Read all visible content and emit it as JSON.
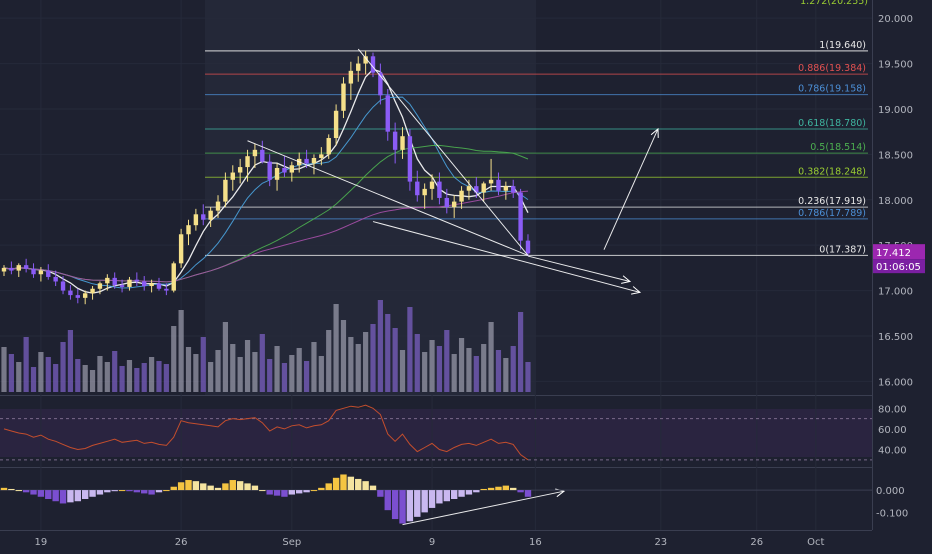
{
  "chart_data": {
    "type": "candlestick",
    "price_axis": {
      "ticks": [
        "20.000",
        "19.500",
        "19.000",
        "18.500",
        "18.000",
        "17.500",
        "17.000",
        "16.500",
        "16.000"
      ],
      "range": [
        15.85,
        20.2
      ],
      "top_partial_label": "1.272(20.255)"
    },
    "x_axis": {
      "tick_labels": [
        "19",
        "26",
        "Sep",
        "9",
        "16",
        "23",
        "26",
        "Oct"
      ]
    },
    "last_price": {
      "value": "17.412",
      "countdown": "01:06:05"
    },
    "fib_levels": [
      {
        "ratio": "1",
        "price": 19.64,
        "label": "1(19.640)",
        "color": "#e8e8e8"
      },
      {
        "ratio": "0.886",
        "price": 19.384,
        "label": "0.886(19.384)",
        "color": "#e25151"
      },
      {
        "ratio": "0.786",
        "price": 19.158,
        "label": "0.786(19.158)",
        "color": "#4c8fd6"
      },
      {
        "ratio": "0.618",
        "price": 18.78,
        "label": "0.618(18.780)",
        "color": "#3fb5a0"
      },
      {
        "ratio": "0.5",
        "price": 18.514,
        "label": "0.5(18.514)",
        "color": "#4caf50"
      },
      {
        "ratio": "0.382",
        "price": 18.248,
        "label": "0.382(18.248)",
        "color": "#9acd32"
      },
      {
        "ratio": "0.236",
        "price": 17.919,
        "label": "0.236(17.919)",
        "color": "#e8e8e8"
      },
      {
        "ratio": "0.786",
        "price": 17.789,
        "label": "0.786(17.789)",
        "color": "#4c8fd6"
      },
      {
        "ratio": "0",
        "price": 17.387,
        "label": "0(17.387)",
        "color": "#e8e8e8"
      }
    ],
    "candles": [
      [
        17.21,
        17.28,
        17.16,
        17.25
      ],
      [
        17.25,
        17.32,
        17.18,
        17.22
      ],
      [
        17.22,
        17.3,
        17.15,
        17.28
      ],
      [
        17.28,
        17.35,
        17.2,
        17.24
      ],
      [
        17.24,
        17.3,
        17.14,
        17.18
      ],
      [
        17.18,
        17.26,
        17.1,
        17.22
      ],
      [
        17.22,
        17.29,
        17.12,
        17.15
      ],
      [
        17.15,
        17.22,
        17.05,
        17.1
      ],
      [
        17.1,
        17.16,
        16.96,
        17.0
      ],
      [
        17.0,
        17.06,
        16.9,
        16.95
      ],
      [
        16.95,
        17.02,
        16.86,
        16.92
      ],
      [
        16.92,
        17.0,
        16.85,
        16.97
      ],
      [
        16.97,
        17.05,
        16.9,
        17.02
      ],
      [
        17.02,
        17.1,
        16.96,
        17.08
      ],
      [
        17.08,
        17.18,
        17.0,
        17.14
      ],
      [
        17.14,
        17.2,
        17.02,
        17.06
      ],
      [
        17.06,
        17.12,
        16.98,
        17.04
      ],
      [
        17.04,
        17.15,
        17.0,
        17.12
      ],
      [
        17.12,
        17.2,
        17.05,
        17.1
      ],
      [
        17.1,
        17.16,
        17.0,
        17.05
      ],
      [
        17.05,
        17.12,
        16.98,
        17.08
      ],
      [
        17.08,
        17.14,
        17.0,
        17.02
      ],
      [
        17.02,
        17.08,
        16.95,
        17.0
      ],
      [
        17.0,
        17.32,
        16.98,
        17.3
      ],
      [
        17.3,
        17.68,
        17.25,
        17.62
      ],
      [
        17.62,
        17.78,
        17.5,
        17.72
      ],
      [
        17.72,
        17.9,
        17.66,
        17.84
      ],
      [
        17.84,
        17.95,
        17.72,
        17.78
      ],
      [
        17.78,
        17.92,
        17.7,
        17.88
      ],
      [
        17.88,
        18.05,
        17.8,
        17.98
      ],
      [
        17.98,
        18.3,
        17.92,
        18.22
      ],
      [
        18.22,
        18.38,
        18.1,
        18.3
      ],
      [
        18.3,
        18.45,
        18.18,
        18.36
      ],
      [
        18.36,
        18.55,
        18.2,
        18.48
      ],
      [
        18.48,
        18.62,
        18.35,
        18.55
      ],
      [
        18.55,
        18.65,
        18.4,
        18.42
      ],
      [
        18.42,
        18.5,
        18.15,
        18.22
      ],
      [
        18.22,
        18.4,
        18.1,
        18.35
      ],
      [
        18.35,
        18.48,
        18.25,
        18.3
      ],
      [
        18.3,
        18.42,
        18.2,
        18.38
      ],
      [
        18.38,
        18.52,
        18.3,
        18.45
      ],
      [
        18.45,
        18.55,
        18.35,
        18.4
      ],
      [
        18.4,
        18.5,
        18.28,
        18.46
      ],
      [
        18.46,
        18.58,
        18.38,
        18.5
      ],
      [
        18.5,
        18.72,
        18.45,
        18.68
      ],
      [
        18.68,
        19.05,
        18.6,
        18.98
      ],
      [
        18.98,
        19.35,
        18.9,
        19.28
      ],
      [
        19.28,
        19.52,
        19.1,
        19.42
      ],
      [
        19.42,
        19.58,
        19.3,
        19.5
      ],
      [
        19.5,
        19.64,
        19.38,
        19.58
      ],
      [
        19.58,
        19.62,
        19.35,
        19.4
      ],
      [
        19.4,
        19.5,
        19.05,
        19.15
      ],
      [
        19.15,
        19.22,
        18.65,
        18.75
      ],
      [
        18.75,
        18.85,
        18.4,
        18.55
      ],
      [
        18.55,
        18.8,
        18.45,
        18.7
      ],
      [
        18.7,
        18.78,
        18.1,
        18.2
      ],
      [
        18.2,
        18.32,
        17.98,
        18.05
      ],
      [
        18.05,
        18.18,
        17.9,
        18.12
      ],
      [
        18.12,
        18.28,
        18.0,
        18.2
      ],
      [
        18.2,
        18.3,
        17.95,
        18.02
      ],
      [
        18.02,
        18.12,
        17.85,
        17.92
      ],
      [
        17.92,
        18.05,
        17.8,
        17.98
      ],
      [
        17.98,
        18.15,
        17.9,
        18.1
      ],
      [
        18.1,
        18.22,
        18.0,
        18.15
      ],
      [
        18.15,
        18.25,
        18.02,
        18.08
      ],
      [
        18.08,
        18.2,
        17.98,
        18.18
      ],
      [
        18.18,
        18.45,
        18.1,
        18.22
      ],
      [
        18.22,
        18.3,
        18.05,
        18.1
      ],
      [
        18.1,
        18.2,
        18.0,
        18.15
      ],
      [
        18.15,
        18.22,
        18.02,
        18.08
      ],
      [
        18.08,
        18.12,
        17.45,
        17.55
      ],
      [
        17.55,
        17.62,
        17.38,
        17.41
      ]
    ],
    "volume": [
      0.45,
      0.38,
      0.3,
      0.55,
      0.25,
      0.4,
      0.35,
      0.28,
      0.5,
      0.62,
      0.33,
      0.27,
      0.22,
      0.36,
      0.3,
      0.41,
      0.26,
      0.32,
      0.24,
      0.29,
      0.35,
      0.31,
      0.28,
      0.66,
      0.82,
      0.45,
      0.38,
      0.55,
      0.3,
      0.42,
      0.7,
      0.48,
      0.35,
      0.52,
      0.4,
      0.58,
      0.33,
      0.46,
      0.29,
      0.37,
      0.44,
      0.31,
      0.5,
      0.36,
      0.62,
      0.88,
      0.72,
      0.55,
      0.48,
      0.6,
      0.68,
      0.92,
      0.78,
      0.64,
      0.42,
      0.85,
      0.58,
      0.4,
      0.52,
      0.46,
      0.62,
      0.38,
      0.54,
      0.44,
      0.36,
      0.48,
      0.7,
      0.42,
      0.34,
      0.46,
      0.8,
      0.3
    ],
    "rsi": {
      "ticks": [
        "80.00",
        "60.00",
        "40.00"
      ],
      "range": [
        25,
        90
      ],
      "band_upper": 70,
      "band_lower": 30,
      "values": [
        60,
        58,
        56,
        55,
        52,
        54,
        50,
        48,
        45,
        42,
        40,
        41,
        44,
        46,
        48,
        50,
        47,
        48,
        49,
        46,
        47,
        45,
        44,
        52,
        68,
        66,
        65,
        64,
        63,
        62,
        68,
        70,
        69,
        70,
        71,
        66,
        58,
        62,
        60,
        63,
        64,
        61,
        63,
        64,
        68,
        78,
        80,
        82,
        81,
        83,
        80,
        74,
        55,
        48,
        55,
        45,
        38,
        42,
        46,
        40,
        38,
        42,
        45,
        46,
        44,
        47,
        50,
        46,
        47,
        45,
        35,
        30
      ]
    },
    "macd": {
      "ticks": [
        "0.000",
        "-0.100"
      ],
      "range": [
        -0.17,
        0.09
      ],
      "histogram": [
        0.01,
        0.005,
        0.0,
        -0.01,
        -0.02,
        -0.03,
        -0.04,
        -0.05,
        -0.06,
        -0.055,
        -0.05,
        -0.04,
        -0.03,
        -0.02,
        -0.01,
        -0.005,
        0.0,
        -0.005,
        -0.01,
        -0.015,
        -0.02,
        -0.01,
        0.0,
        0.015,
        0.035,
        0.045,
        0.04,
        0.03,
        0.02,
        0.01,
        0.03,
        0.045,
        0.04,
        0.03,
        0.02,
        0.0,
        -0.02,
        -0.025,
        -0.03,
        -0.02,
        -0.015,
        -0.01,
        0.0,
        0.01,
        0.03,
        0.055,
        0.07,
        0.06,
        0.05,
        0.04,
        0.02,
        -0.03,
        -0.09,
        -0.13,
        -0.15,
        -0.14,
        -0.12,
        -0.1,
        -0.08,
        -0.06,
        -0.05,
        -0.04,
        -0.03,
        -0.02,
        -0.01,
        0.005,
        0.01,
        0.015,
        0.02,
        0.01,
        -0.01,
        -0.03
      ]
    }
  }
}
